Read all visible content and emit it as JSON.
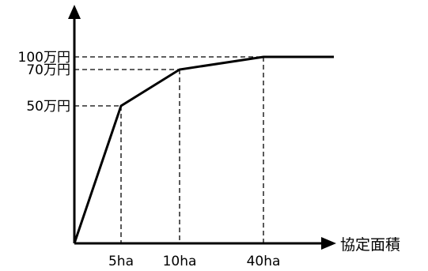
{
  "chart_data": {
    "type": "line",
    "title": "",
    "xlabel": "協定面積",
    "ylabel": "",
    "x_tick_labels": [
      "5ha",
      "10ha",
      "40ha"
    ],
    "y_tick_labels": [
      "50万円",
      "70万円",
      "100万円"
    ],
    "series": [
      {
        "x_ha": [
          0,
          5,
          10,
          40,
          60
        ],
        "y_man_yen": [
          0,
          50,
          70,
          100,
          100
        ]
      }
    ],
    "piecewise_x_axis": true,
    "piecewise_y_axis": true,
    "grid": false,
    "guide_lines": "dashed from each breakpoint to both axes"
  }
}
